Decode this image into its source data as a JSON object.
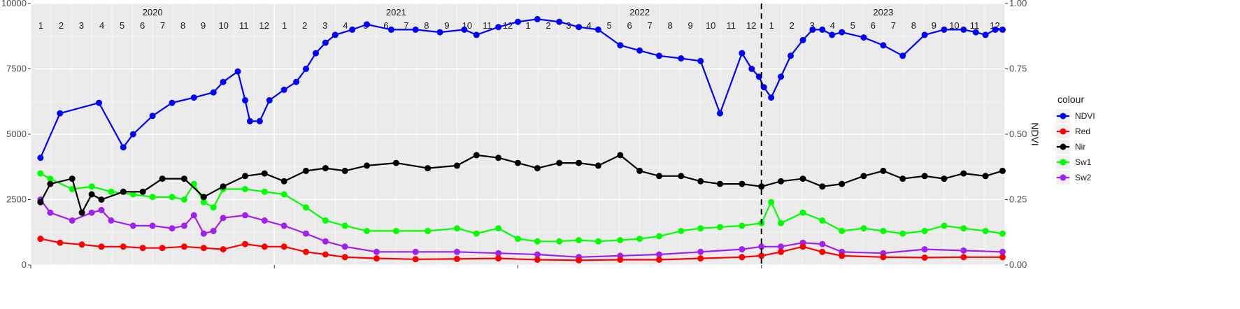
{
  "chart_data": {
    "type": "line",
    "y2label": "NDVI",
    "legend_title": "colour",
    "legend_position": "right",
    "grid": true,
    "ylim": [
      0,
      10000
    ],
    "y2lim": [
      0,
      1
    ],
    "yticks": [
      "0",
      "2500",
      "5000",
      "7500",
      "10000"
    ],
    "y2ticks": [
      "0.00",
      "0.25",
      "0.50",
      "0.75",
      "1.00"
    ],
    "xlim": [
      2020.0,
      2024.0
    ],
    "years": [
      "2020",
      "2021",
      "2022",
      "2023"
    ],
    "months": [
      "1",
      "2",
      "3",
      "4",
      "5",
      "6",
      "7",
      "8",
      "9",
      "10",
      "11",
      "12"
    ],
    "vline_x": 2023.0,
    "colors": {
      "NDVI": "#0000ff",
      "Red": "#ff0000",
      "Nir": "#000000",
      "Sw1": "#00ff00",
      "Sw2": "#a020f0",
      "panel": "#ebebeb",
      "grid": "#ffffff"
    },
    "series": [
      {
        "name": "NDVI",
        "axis": "right",
        "x": [
          2020.04,
          2020.12,
          2020.28,
          2020.38,
          2020.42,
          2020.5,
          2020.58,
          2020.67,
          2020.75,
          2020.79,
          2020.85,
          2020.88,
          2020.9,
          2020.94,
          2020.98,
          2021.04,
          2021.09,
          2021.13,
          2021.17,
          2021.21,
          2021.25,
          2021.32,
          2021.38,
          2021.48,
          2021.58,
          2021.68,
          2021.78,
          2021.83,
          2021.92,
          2022.0,
          2022.08,
          2022.17,
          2022.25,
          2022.33,
          2022.42,
          2022.5,
          2022.58,
          2022.67,
          2022.75,
          2022.83,
          2022.92,
          2022.96,
          2022.99,
          2023.01,
          2023.04,
          2023.08,
          2023.12,
          2023.17,
          2023.21,
          2023.25,
          2023.29,
          2023.33,
          2023.42,
          2023.5,
          2023.58,
          2023.67,
          2023.75,
          2023.83,
          2023.88,
          2023.92,
          2023.96,
          2023.99
        ],
        "y": [
          0.41,
          0.58,
          0.62,
          0.45,
          0.5,
          0.57,
          0.62,
          0.64,
          0.66,
          0.7,
          0.74,
          0.63,
          0.55,
          0.55,
          0.63,
          0.67,
          0.7,
          0.75,
          0.81,
          0.85,
          0.88,
          0.9,
          0.92,
          0.9,
          0.9,
          0.89,
          0.9,
          0.88,
          0.91,
          0.93,
          0.94,
          0.93,
          0.91,
          0.9,
          0.84,
          0.82,
          0.8,
          0.79,
          0.78,
          0.58,
          0.81,
          0.75,
          0.72,
          0.68,
          0.64,
          0.72,
          0.8,
          0.86,
          0.9,
          0.9,
          0.88,
          0.89,
          0.87,
          0.84,
          0.8,
          0.88,
          0.9,
          0.9,
          0.89,
          0.88,
          0.9,
          0.9
        ]
      },
      {
        "name": "Red",
        "axis": "left",
        "x": [
          2020.04,
          2020.12,
          2020.21,
          2020.29,
          2020.38,
          2020.46,
          2020.54,
          2020.63,
          2020.71,
          2020.79,
          2020.88,
          2020.96,
          2021.04,
          2021.13,
          2021.21,
          2021.29,
          2021.42,
          2021.58,
          2021.75,
          2021.92,
          2022.08,
          2022.25,
          2022.42,
          2022.58,
          2022.75,
          2022.92,
          2023.0,
          2023.08,
          2023.17,
          2023.25,
          2023.33,
          2023.5,
          2023.67,
          2023.83,
          2023.99
        ],
        "y": [
          1000,
          850,
          780,
          700,
          700,
          650,
          650,
          700,
          650,
          600,
          800,
          700,
          700,
          500,
          400,
          300,
          250,
          220,
          230,
          250,
          200,
          180,
          200,
          200,
          250,
          300,
          350,
          500,
          700,
          500,
          350,
          300,
          280,
          300,
          300
        ]
      },
      {
        "name": "Nir",
        "axis": "left",
        "x": [
          2020.04,
          2020.08,
          2020.17,
          2020.21,
          2020.25,
          2020.29,
          2020.38,
          2020.46,
          2020.54,
          2020.63,
          2020.71,
          2020.79,
          2020.88,
          2020.96,
          2021.04,
          2021.13,
          2021.21,
          2021.29,
          2021.38,
          2021.5,
          2021.63,
          2021.75,
          2021.83,
          2021.92,
          2022.0,
          2022.08,
          2022.17,
          2022.25,
          2022.33,
          2022.42,
          2022.5,
          2022.58,
          2022.67,
          2022.75,
          2022.83,
          2022.92,
          2023.0,
          2023.08,
          2023.17,
          2023.25,
          2023.33,
          2023.42,
          2023.5,
          2023.58,
          2023.67,
          2023.75,
          2023.83,
          2023.92,
          2023.99
        ],
        "y": [
          2400,
          3100,
          3300,
          2000,
          2700,
          2500,
          2800,
          2800,
          3300,
          3300,
          2600,
          3000,
          3400,
          3500,
          3200,
          3600,
          3700,
          3600,
          3800,
          3900,
          3700,
          3800,
          4200,
          4100,
          3900,
          3700,
          3900,
          3900,
          3800,
          4200,
          3600,
          3400,
          3400,
          3200,
          3100,
          3100,
          3000,
          3200,
          3300,
          3000,
          3100,
          3400,
          3600,
          3300,
          3400,
          3300,
          3500,
          3400,
          3600
        ]
      },
      {
        "name": "Sw1",
        "axis": "left",
        "x": [
          2020.04,
          2020.08,
          2020.17,
          2020.25,
          2020.33,
          2020.42,
          2020.5,
          2020.58,
          2020.63,
          2020.67,
          2020.71,
          2020.75,
          2020.79,
          2020.88,
          2020.96,
          2021.04,
          2021.13,
          2021.21,
          2021.29,
          2021.38,
          2021.5,
          2021.63,
          2021.75,
          2021.83,
          2021.92,
          2022.0,
          2022.08,
          2022.17,
          2022.25,
          2022.33,
          2022.42,
          2022.5,
          2022.58,
          2022.67,
          2022.75,
          2022.83,
          2022.92,
          2023.0,
          2023.04,
          2023.08,
          2023.17,
          2023.25,
          2023.33,
          2023.42,
          2023.5,
          2023.58,
          2023.67,
          2023.75,
          2023.83,
          2023.92,
          2023.99
        ],
        "y": [
          3500,
          3300,
          2900,
          3000,
          2800,
          2700,
          2600,
          2600,
          2500,
          3100,
          2400,
          2200,
          2900,
          2900,
          2800,
          2700,
          2200,
          1700,
          1500,
          1300,
          1300,
          1300,
          1400,
          1200,
          1400,
          1000,
          900,
          900,
          950,
          900,
          950,
          1000,
          1100,
          1300,
          1400,
          1450,
          1500,
          1600,
          2400,
          1600,
          2000,
          1700,
          1300,
          1400,
          1300,
          1200,
          1300,
          1500,
          1400,
          1300,
          1200
        ]
      },
      {
        "name": "Sw2",
        "axis": "left",
        "x": [
          2020.04,
          2020.08,
          2020.17,
          2020.25,
          2020.29,
          2020.33,
          2020.42,
          2020.5,
          2020.58,
          2020.63,
          2020.67,
          2020.71,
          2020.75,
          2020.79,
          2020.88,
          2020.96,
          2021.04,
          2021.13,
          2021.21,
          2021.29,
          2021.42,
          2021.58,
          2021.75,
          2021.92,
          2022.08,
          2022.25,
          2022.42,
          2022.58,
          2022.75,
          2022.92,
          2023.0,
          2023.08,
          2023.17,
          2023.25,
          2023.33,
          2023.5,
          2023.67,
          2023.83,
          2023.99
        ],
        "y": [
          2500,
          2000,
          1700,
          2000,
          2100,
          1700,
          1500,
          1500,
          1400,
          1500,
          1900,
          1200,
          1300,
          1800,
          1900,
          1700,
          1500,
          1200,
          900,
          700,
          500,
          500,
          500,
          450,
          400,
          300,
          350,
          400,
          500,
          600,
          700,
          700,
          850,
          800,
          500,
          450,
          600,
          550,
          500
        ]
      }
    ]
  }
}
